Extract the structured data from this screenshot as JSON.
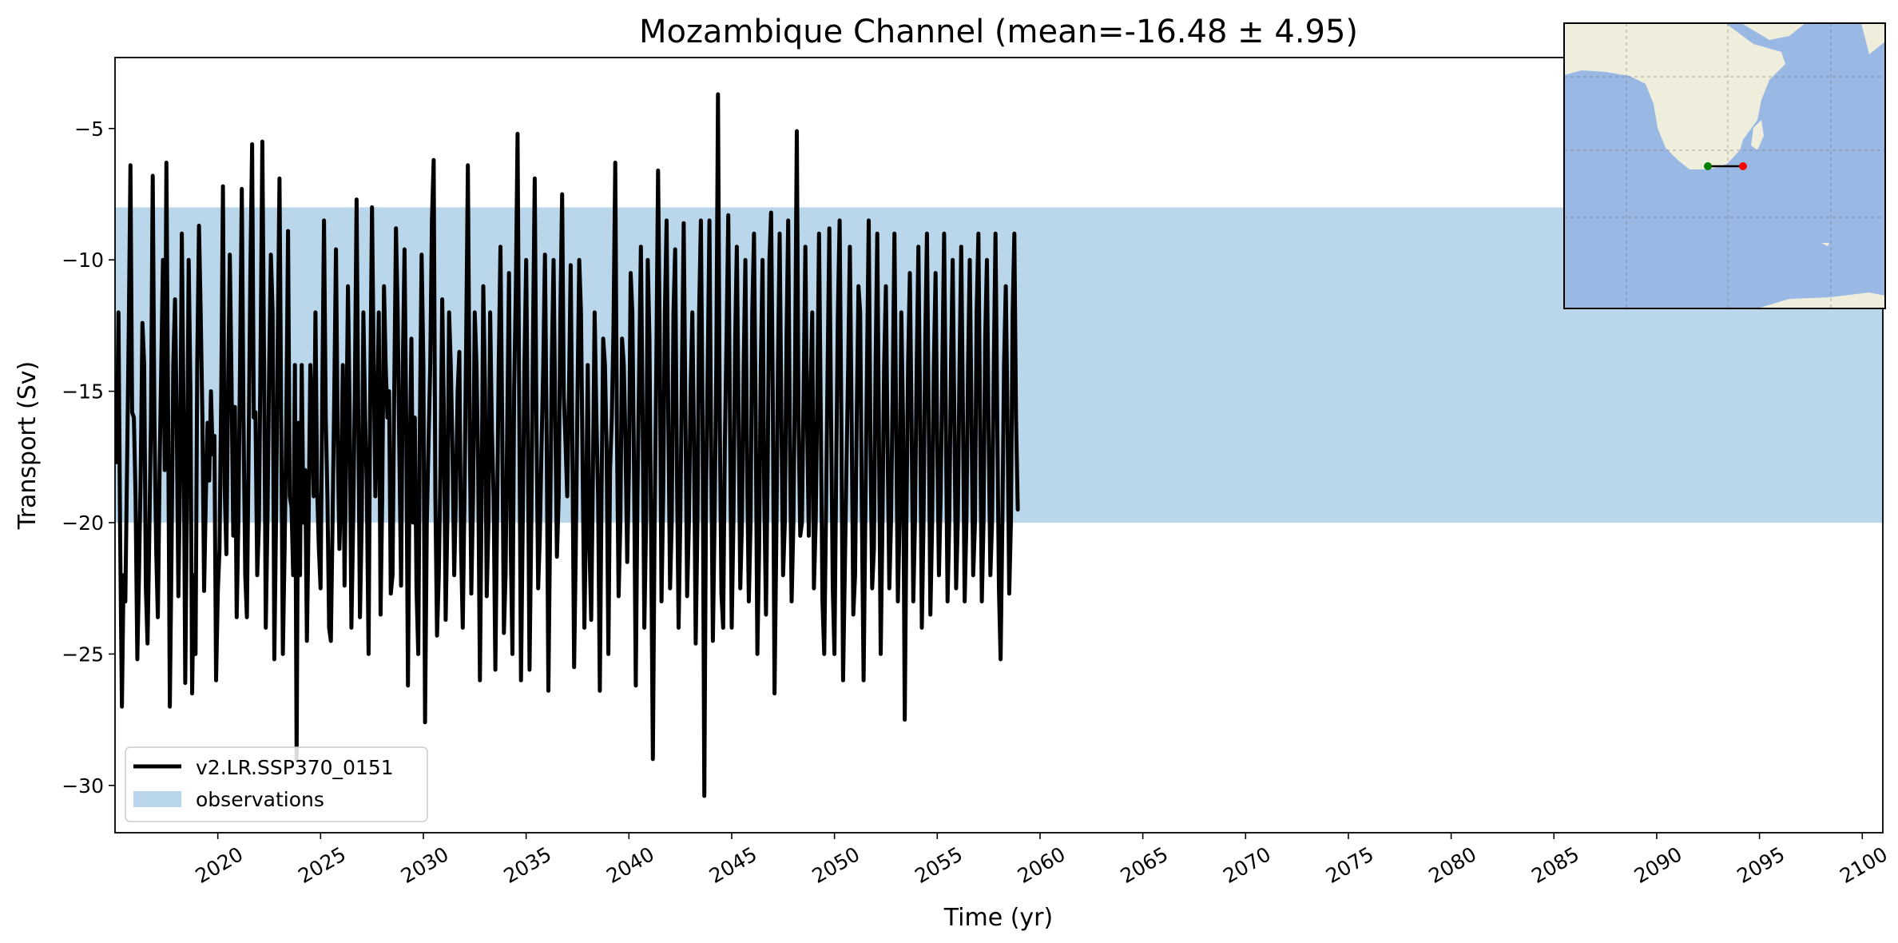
{
  "chart_data": {
    "type": "line",
    "title": "Mozambique Channel (mean=-16.48 ± 4.95)",
    "xlabel": "Time (yr)",
    "ylabel": "Transport (Sv)",
    "xlim": [
      2015.0,
      2101.0
    ],
    "ylim": [
      -31.8,
      -2.3
    ],
    "x_ticks": [
      2020,
      2025,
      2030,
      2035,
      2040,
      2045,
      2050,
      2055,
      2060,
      2065,
      2070,
      2075,
      2080,
      2085,
      2090,
      2095,
      2100
    ],
    "y_ticks": [
      -5,
      -10,
      -15,
      -20,
      -25,
      -30
    ],
    "y_tick_labels": [
      "−5",
      "−10",
      "−15",
      "−20",
      "−25",
      "−30"
    ],
    "observations_band": {
      "name": "observations",
      "y_min": -20,
      "y_max": -8,
      "color": "#bad6ea"
    },
    "legend": {
      "position": "lower-left",
      "entries": [
        "v2.LR.SSP370_0151",
        "observations"
      ]
    },
    "series": [
      {
        "name": "v2.LR.SSP370_0151",
        "color": "#000000",
        "x_start": 2015.0,
        "x_step": 0.0833333,
        "values": [
          -14.5,
          -17.7,
          -12.0,
          -20.5,
          -27.0,
          -22.0,
          -23.0,
          -18.0,
          -12.6,
          -6.4,
          -15.8,
          -16.0,
          -19.0,
          -25.2,
          -22.0,
          -18.0,
          -12.4,
          -14.0,
          -22.5,
          -24.6,
          -20.5,
          -16.0,
          -6.8,
          -16.0,
          -21.0,
          -23.6,
          -18.0,
          -14.0,
          -10.0,
          -18.0,
          -6.3,
          -16.0,
          -27.0,
          -21.0,
          -14.0,
          -11.5,
          -16.0,
          -22.8,
          -18.0,
          -9.0,
          -15.8,
          -26.1,
          -19.0,
          -10.0,
          -15.0,
          -26.5,
          -22.0,
          -25.0,
          -14.0,
          -8.7,
          -12.0,
          -16.0,
          -22.6,
          -19.0,
          -16.2,
          -18.4,
          -15.0,
          -17.4,
          -16.7,
          -26.0,
          -22.6,
          -21.0,
          -15.0,
          -7.2,
          -18.6,
          -21.2,
          -15.0,
          -9.8,
          -14.5,
          -20.5,
          -15.6,
          -23.6,
          -20.0,
          -14.0,
          -7.3,
          -16.0,
          -22.0,
          -23.6,
          -17.0,
          -10.5,
          -5.6,
          -16.0,
          -15.8,
          -22.0,
          -20.1,
          -13.2,
          -5.5,
          -14.0,
          -24.0,
          -20.0,
          -14.0,
          -9.8,
          -12.0,
          -25.2,
          -19.8,
          -13.0,
          -6.9,
          -16.0,
          -25.0,
          -21.0,
          -16.2,
          -8.9,
          -19.0,
          -19.4,
          -22.0,
          -14.0,
          -29.0,
          -16.2,
          -22.0,
          -14.0,
          -20.0,
          -18.0,
          -24.5,
          -20.0,
          -14.0,
          -16.0,
          -19.0,
          -12.0,
          -18.7,
          -21.0,
          -22.5,
          -15.0,
          -8.5,
          -16.0,
          -19.0,
          -24.0,
          -24.5,
          -20.0,
          -15.0,
          -9.6,
          -17.0,
          -21.0,
          -18.5,
          -14.0,
          -22.4,
          -17.0,
          -11.0,
          -16.0,
          -24.0,
          -20.0,
          -15.0,
          -7.7,
          -16.0,
          -23.6,
          -20.0,
          -12.0,
          -16.0,
          -18.7,
          -25.0,
          -15.0,
          -8.0,
          -14.0,
          -19.0,
          -16.0,
          -12.0,
          -23.5,
          -19.0,
          -11.0,
          -14.0,
          -16.0,
          -15.0,
          -22.7,
          -22.0,
          -15.0,
          -8.8,
          -12.0,
          -17.5,
          -22.4,
          -14.0,
          -9.6,
          -16.0,
          -26.2,
          -18.0,
          -13.0,
          -20.0,
          -16.0,
          -22.5,
          -25.0,
          -16.0,
          -9.8,
          -14.0,
          -27.6,
          -20.0,
          -17.0,
          -14.0,
          -8.5,
          -6.2,
          -19.0,
          -24.3,
          -22.0,
          -18.0,
          -11.5,
          -16.0,
          -23.7,
          -20.0,
          -12.0,
          -14.0,
          -17.2,
          -22.0,
          -19.0,
          -15.0,
          -13.5,
          -21.0,
          -24.0,
          -19.0,
          -13.0,
          -6.4,
          -16.0,
          -22.7,
          -19.0,
          -12.0,
          -14.0,
          -18.0,
          -26.0,
          -19.0,
          -11.0,
          -15.0,
          -22.8,
          -20.0,
          -12.0,
          -16.5,
          -19.0,
          -25.6,
          -20.0,
          -14.0,
          -9.5,
          -16.0,
          -24.2,
          -22.0,
          -16.0,
          -10.5,
          -21.0,
          -25.0,
          -15.0,
          -11.0,
          -5.2,
          -16.0,
          -26.0,
          -20.0,
          -14.0,
          -10.0,
          -17.0,
          -25.6,
          -20.0,
          -13.0,
          -6.9,
          -16.0,
          -22.5,
          -20.5,
          -17.0,
          -14.0,
          -9.8,
          -17.0,
          -26.4,
          -20.0,
          -13.8,
          -10.0,
          -16.0,
          -21.3,
          -19.0,
          -12.0,
          -7.5,
          -15.2,
          -17.0,
          -19.0,
          -15.0,
          -10.2,
          -17.0,
          -25.5,
          -21.0,
          -15.0,
          -10.0,
          -12.0,
          -18.0,
          -24.0,
          -19.5,
          -14.0,
          -21.0,
          -23.7,
          -18.0,
          -12.0,
          -16.0,
          -19.0,
          -26.4,
          -19.0,
          -13.0,
          -14.0,
          -17.2,
          -25.0,
          -18.0,
          -16.0,
          -12.6,
          -6.3,
          -16.6,
          -22.8,
          -20.0,
          -13.0,
          -14.0,
          -17.0,
          -21.5,
          -18.0,
          -10.5,
          -12.0,
          -18.0,
          -26.2,
          -19.0,
          -14.0,
          -9.5,
          -16.0,
          -24.0,
          -20.0,
          -10.0,
          -13.0,
          -21.0,
          -29.0,
          -20.0,
          -14.0,
          -6.6,
          -13.0,
          -23.0,
          -19.0,
          -12.0,
          -8.5,
          -16.0,
          -22.5,
          -20.0,
          -12.0,
          -9.6,
          -18.0,
          -24.0,
          -20.0,
          -14.0,
          -8.6,
          -16.0,
          -22.8,
          -20.0,
          -15.0,
          -12.0,
          -17.0,
          -24.6,
          -20.0,
          -12.0,
          -8.5,
          -16.0,
          -30.4,
          -19.0,
          -14.0,
          -8.5,
          -17.0,
          -24.5,
          -20.0,
          -14.0,
          -3.7,
          -16.0,
          -22.7,
          -24.0,
          -17.0,
          -13.0,
          -8.3,
          -16.0,
          -24.0,
          -20.0,
          -13.0,
          -9.5,
          -16.0,
          -22.5,
          -20.0,
          -14.0,
          -10.0,
          -18.0,
          -23.0,
          -20.0,
          -12.0,
          -9.0,
          -16.0,
          -25.0,
          -21.0,
          -14.0,
          -10.0,
          -19.0,
          -23.5,
          -18.0,
          -10.0,
          -8.2,
          -15.0,
          -26.5,
          -21.0,
          -14.0,
          -9.0,
          -16.0,
          -22.0,
          -20.0,
          -13.0,
          -8.5,
          -17.0,
          -23.0,
          -20.0,
          -14.0,
          -5.1,
          -16.0,
          -20.5,
          -20.0,
          -15.0,
          -9.5,
          -16.0,
          -20.5,
          -15.0,
          -12.0,
          -22.5,
          -20.0,
          -15.0,
          -9.0,
          -16.0,
          -23.0,
          -25.0,
          -20.0,
          -14.0,
          -8.8,
          -16.0,
          -22.5,
          -25.0,
          -18.0,
          -12.0,
          -8.5,
          -16.0,
          -26.0,
          -22.0,
          -18.0,
          -14.0,
          -9.5,
          -16.0,
          -23.5,
          -22.0,
          -16.0,
          -11.0,
          -12.0,
          -19.5,
          -26.0,
          -20.0,
          -14.0,
          -8.5,
          -17.0,
          -22.5,
          -21.0,
          -14.0,
          -9.0,
          -17.0,
          -25.0,
          -20.0,
          -14.0,
          -11.0,
          -17.0,
          -22.5,
          -20.0,
          -15.0,
          -9.0,
          -16.0,
          -23.0,
          -20.0,
          -12.0,
          -16.0,
          -27.5,
          -20.0,
          -14.0,
          -10.5,
          -16.0,
          -23.0,
          -20.0,
          -14.0,
          -9.5,
          -16.0,
          -24.0,
          -20.0,
          -13.0,
          -9.0,
          -16.0,
          -23.5,
          -20.0,
          -14.0,
          -10.5,
          -17.0,
          -22.0,
          -19.0,
          -14.0,
          -9.0,
          -16.0,
          -23.0,
          -20.0,
          -14.0,
          -10.0,
          -16.0,
          -22.5,
          -20.0,
          -14.0,
          -9.5,
          -16.0,
          -23.0,
          -20.0,
          -14.0,
          -10.0,
          -16.0,
          -22.0,
          -20.0,
          -12.0,
          -9.0,
          -16.0,
          -23.0,
          -20.0,
          -13.0,
          -10.0,
          -16.5,
          -22.0,
          -20.0,
          -14.0,
          -9.0,
          -16.0,
          -22.5,
          -25.2,
          -20.0,
          -14.0,
          -11.0,
          -16.0,
          -22.7,
          -20.0,
          -12.0,
          -9.0,
          -16.0,
          -19.5
        ]
      }
    ]
  },
  "inset_map": {
    "land_color": "#efeedd",
    "ocean_color": "#99b8e4",
    "section_start_marker_color": "#008000",
    "section_end_marker_color": "#ff0000"
  }
}
